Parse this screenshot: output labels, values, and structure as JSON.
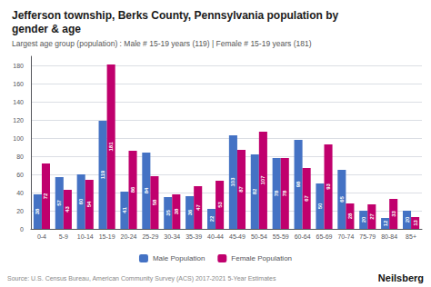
{
  "chart_data": {
    "type": "bar",
    "title": "Jefferson township, Berks County, Pennsylvania population by\ngender & age",
    "subtitle": "Largest age group (population) : Male # 15-19 years (119) | Female # 15-19 years (181)",
    "categories": [
      "0-4",
      "5-9",
      "10-14",
      "15-19",
      "20-24",
      "25-29",
      "30-34",
      "35-39",
      "40-44",
      "45-49",
      "50-54",
      "55-59",
      "60-64",
      "65-69",
      "70-74",
      "75-79",
      "80-84",
      "85+"
    ],
    "series": [
      {
        "name": "Male Population",
        "color": "#4472C4",
        "values": [
          38,
          57,
          60,
          119,
          41,
          84,
          35,
          36,
          22,
          103,
          82,
          78,
          98,
          50,
          65,
          20,
          12,
          20
        ]
      },
      {
        "name": "Female Population",
        "color": "#C0006D",
        "values": [
          72,
          43,
          54,
          181,
          86,
          58,
          38,
          47,
          53,
          87,
          107,
          78,
          67,
          93,
          28,
          27,
          33,
          13
        ]
      }
    ],
    "ylim": [
      0,
      190
    ],
    "yticks": [
      0,
      20,
      40,
      60,
      80,
      100,
      120,
      140,
      160,
      180
    ],
    "grid": true,
    "legend": "bottom",
    "data_labels": true,
    "annotations": [
      "Source: U.S. Census Bureau, American Community Survey (ACS) 2017-2021 5-Year Estimates",
      "Neilsberg"
    ]
  }
}
